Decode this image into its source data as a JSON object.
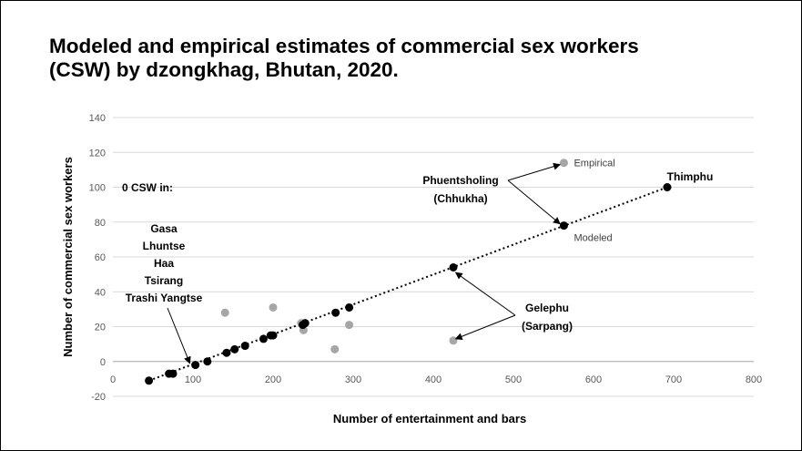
{
  "title_lines": [
    "Modeled and empirical estimates of commercial sex workers",
    "(CSW) by dzongkhag, Bhutan, 2020."
  ],
  "chart_data": {
    "type": "scatter",
    "xlabel": "Number of entertainment and bars",
    "ylabel": "Number of commercial sex workers",
    "xlim": [
      0,
      800
    ],
    "ylim": [
      -20,
      140
    ],
    "x_ticks": [
      0,
      100,
      200,
      300,
      400,
      500,
      600,
      700,
      800
    ],
    "y_ticks": [
      -20,
      0,
      20,
      40,
      60,
      80,
      100,
      120,
      140
    ],
    "grid": "horizontal",
    "colors": {
      "modeled": "#000000",
      "empirical": "#a6a6a6",
      "line": "#000000"
    },
    "series": [
      {
        "id": "modeled",
        "points": [
          [
            45,
            -11
          ],
          [
            70,
            -7
          ],
          [
            75,
            -7
          ],
          [
            103,
            -2
          ],
          [
            118,
            0
          ],
          [
            142,
            5
          ],
          [
            152,
            7
          ],
          [
            165,
            9
          ],
          [
            188,
            13
          ],
          [
            197,
            15
          ],
          [
            200,
            15
          ],
          [
            237,
            21
          ],
          [
            240,
            22
          ],
          [
            278,
            28
          ],
          [
            295,
            31
          ],
          [
            425,
            54
          ],
          [
            563,
            78
          ],
          [
            692,
            100
          ]
        ]
      },
      {
        "id": "empirical",
        "points": [
          [
            140,
            28
          ],
          [
            200,
            31
          ],
          [
            235,
            22
          ],
          [
            238,
            18
          ],
          [
            277,
            7
          ],
          [
            295,
            21
          ],
          [
            425,
            12
          ],
          [
            563,
            114
          ],
          [
            692,
            100
          ]
        ]
      }
    ],
    "annotations": {
      "zero_csw_heading": "0 CSW  in:",
      "zero_csw_list": [
        "Gasa",
        "Lhuntse",
        "Haa",
        "Tsirang",
        "Trashi Yangtse"
      ],
      "phuentsholing": [
        "Phuentsholing",
        "(Chhukha)"
      ],
      "gelephu": [
        "Gelephu",
        "(Sarpang)"
      ],
      "thimphu": "Thimphu",
      "empirical_label": "Empirical",
      "modeled_label": "Modeled"
    }
  }
}
